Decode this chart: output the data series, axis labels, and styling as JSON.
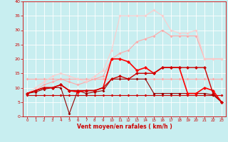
{
  "title": "",
  "xlabel": "Vent moyen/en rafales ( km/h )",
  "ylabel": "",
  "xlim": [
    -0.5,
    23.5
  ],
  "ylim": [
    0,
    40
  ],
  "yticks": [
    0,
    5,
    10,
    15,
    20,
    25,
    30,
    35,
    40
  ],
  "xticks": [
    0,
    1,
    2,
    3,
    4,
    5,
    6,
    7,
    8,
    9,
    10,
    11,
    12,
    13,
    14,
    15,
    16,
    17,
    18,
    19,
    20,
    21,
    22,
    23
  ],
  "bg_color": "#c8eef0",
  "grid_color": "#ffffff",
  "series": [
    {
      "x": [
        0,
        1,
        2,
        3,
        4,
        5,
        6,
        7,
        8,
        9,
        10,
        11,
        12,
        13,
        14,
        15,
        16,
        17,
        18,
        19,
        20,
        21,
        22,
        23
      ],
      "y": [
        7.5,
        7.5,
        7.5,
        7.5,
        7.5,
        7.5,
        7.5,
        7.5,
        7.5,
        7.5,
        7.5,
        7.5,
        7.5,
        7.5,
        7.5,
        7.5,
        7.5,
        7.5,
        7.5,
        7.5,
        7.5,
        7.5,
        7.5,
        7.5
      ],
      "color": "#cc0000",
      "marker": "D",
      "linewidth": 0.8,
      "markersize": 2.0,
      "zorder": 3
    },
    {
      "x": [
        0,
        1,
        2,
        3,
        4,
        5,
        6,
        7,
        8,
        9,
        10,
        11,
        12,
        13,
        14,
        15,
        16,
        17,
        18,
        19,
        20,
        21,
        22,
        23
      ],
      "y": [
        13,
        13,
        13,
        13,
        13,
        13,
        13,
        13,
        13,
        13,
        13,
        13,
        13,
        13,
        13,
        13,
        13,
        13,
        13,
        13,
        13,
        13,
        13,
        13
      ],
      "color": "#ffaaaa",
      "marker": "D",
      "linewidth": 0.8,
      "markersize": 2.0,
      "zorder": 3
    },
    {
      "x": [
        0,
        1,
        2,
        3,
        4,
        5,
        6,
        7,
        8,
        9,
        10,
        11,
        12,
        13,
        14,
        15,
        16,
        17,
        18,
        19,
        20,
        21,
        22,
        23
      ],
      "y": [
        8,
        8.5,
        9.5,
        10,
        10,
        1,
        9,
        8,
        8.5,
        9,
        13,
        13,
        13,
        13,
        13,
        8,
        8,
        8,
        8,
        8,
        8,
        8,
        7.5,
        5
      ],
      "color": "#990000",
      "marker": "D",
      "linewidth": 0.8,
      "markersize": 2.0,
      "zorder": 4
    },
    {
      "x": [
        0,
        1,
        2,
        3,
        4,
        5,
        6,
        7,
        8,
        9,
        10,
        11,
        12,
        13,
        14,
        15,
        16,
        17,
        18,
        19,
        20,
        21,
        22,
        23
      ],
      "y": [
        8,
        9,
        10,
        10,
        11,
        9,
        8.5,
        9,
        9,
        10,
        20,
        20,
        19,
        16,
        17,
        15,
        17,
        17,
        17,
        8,
        8,
        10,
        9,
        5
      ],
      "color": "#ff0000",
      "marker": "D",
      "linewidth": 1.2,
      "markersize": 2.5,
      "zorder": 5
    },
    {
      "x": [
        0,
        1,
        2,
        3,
        4,
        5,
        6,
        7,
        8,
        9,
        10,
        11,
        12,
        13,
        14,
        15,
        16,
        17,
        18,
        19,
        20,
        21,
        22,
        23
      ],
      "y": [
        8,
        9,
        10,
        10,
        11,
        9,
        9,
        9,
        9,
        10,
        13,
        14,
        13,
        15,
        15,
        15,
        17,
        17,
        17,
        17,
        17,
        17,
        8,
        5
      ],
      "color": "#cc0000",
      "marker": "D",
      "linewidth": 1.0,
      "markersize": 2.5,
      "zorder": 5
    },
    {
      "x": [
        0,
        1,
        2,
        3,
        4,
        5,
        6,
        7,
        8,
        9,
        10,
        11,
        12,
        13,
        14,
        15,
        16,
        17,
        18,
        19,
        20,
        21,
        22,
        23
      ],
      "y": [
        8,
        9,
        11,
        12,
        13,
        12,
        11,
        12,
        13,
        14,
        20,
        22,
        23,
        26,
        27,
        28,
        30,
        28,
        28,
        28,
        28,
        20,
        20,
        20
      ],
      "color": "#ffaaaa",
      "marker": "D",
      "linewidth": 0.8,
      "markersize": 2.0,
      "zorder": 3
    },
    {
      "x": [
        0,
        1,
        2,
        3,
        4,
        5,
        6,
        7,
        8,
        9,
        10,
        11,
        12,
        13,
        14,
        15,
        16,
        17,
        18,
        19,
        20,
        21,
        22,
        23
      ],
      "y": [
        8,
        10,
        12,
        14,
        15,
        14,
        13,
        12,
        14,
        16,
        23,
        35,
        35,
        35,
        35,
        37,
        35,
        30,
        29,
        29,
        30,
        20,
        20,
        20
      ],
      "color": "#ffcccc",
      "marker": "D",
      "linewidth": 0.8,
      "markersize": 2.0,
      "zorder": 3
    }
  ]
}
